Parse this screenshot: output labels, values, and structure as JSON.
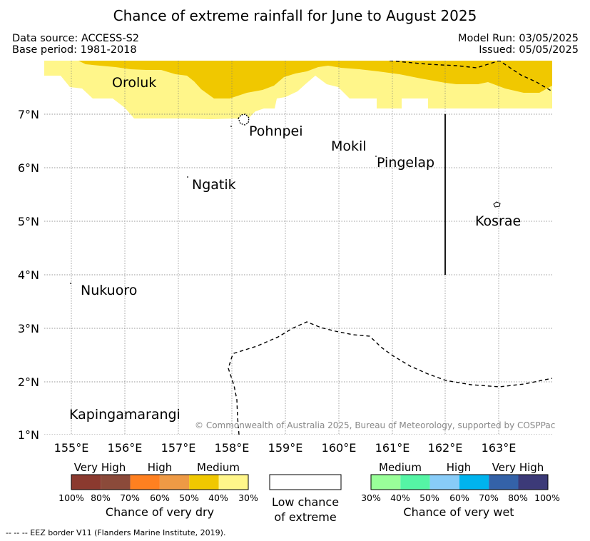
{
  "title": "Chance of extreme rainfall for June to August 2025",
  "data_source": "Data source: ACCESS-S2",
  "base_period": "Base period: 1981-2018",
  "model_run": "Model Run: 03/05/2025",
  "issued": "Issued: 05/05/2025",
  "lat_ticks": [
    "7°N",
    "6°N",
    "5°N",
    "4°N",
    "3°N",
    "2°N",
    "1°N"
  ],
  "lon_ticks": [
    "155°E",
    "156°E",
    "157°E",
    "158°E",
    "159°E",
    "160°E",
    "161°E",
    "162°E",
    "163°E"
  ],
  "places": {
    "oroluk": "Oroluk",
    "pohnpei": "Pohnpei",
    "mokil": "Mokil",
    "pingelap": "Pingelap",
    "ngatik": "Ngatik",
    "kosrae": "Kosrae",
    "nukuoro": "Nukuoro",
    "kapingamarangi": "Kapingamarangi"
  },
  "copyright": "© Commonwealth of Australia 2025, Bureau of Meteorology, supported by COSPPac",
  "legend": {
    "dry": {
      "categories": [
        "Very High",
        "High",
        "Medium"
      ],
      "ticks": [
        "100%",
        "80%",
        "70%",
        "60%",
        "50%",
        "40%",
        "30%"
      ],
      "colors": [
        "#8b3a2f",
        "#8b4a3a",
        "#ff8020",
        "#ee9a45",
        "#f0c800",
        "#fff68a"
      ],
      "caption": "Chance of very dry"
    },
    "low": {
      "line1": "Low chance",
      "line2": "of extreme"
    },
    "wet": {
      "categories": [
        "Medium",
        "High",
        "Very High"
      ],
      "ticks": [
        "30%",
        "40%",
        "50%",
        "60%",
        "70%",
        "80%",
        "100%"
      ],
      "colors": [
        "#99ff99",
        "#55f5a5",
        "#88ccf8",
        "#00b4ee",
        "#3462a8",
        "#3c3a78"
      ],
      "caption": "Chance of very wet"
    }
  },
  "eez_note": "--  --  -- EEZ border V11 (Flanders Marine Institute, 2019).",
  "colors": {
    "medium_dry": "#f0c800",
    "light_dry": "#fff68a"
  }
}
